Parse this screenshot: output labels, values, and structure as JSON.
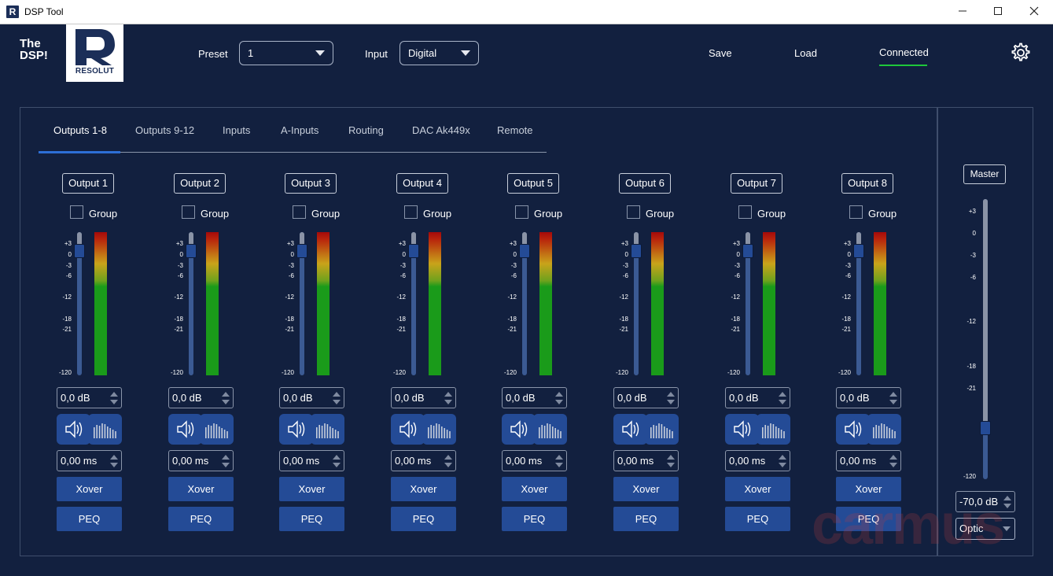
{
  "window": {
    "title": "DSP Tool",
    "icon": "resolut-app-icon",
    "controls": [
      "minimize-icon",
      "maximize-icon",
      "close-icon"
    ]
  },
  "brand": {
    "product_line1": "The",
    "product_line2": "DSP!",
    "logo_text": "RESOLUT"
  },
  "header": {
    "preset_label": "Preset",
    "preset_value": "1",
    "input_label": "Input",
    "input_value": "Digital",
    "save_label": "Save",
    "load_label": "Load",
    "status_label": "Connected",
    "status_color": "#1ec73a",
    "settings_icon": "gear-icon"
  },
  "tabs": [
    {
      "label": "Outputs 1-8",
      "active": true
    },
    {
      "label": "Outputs 9-12",
      "active": false
    },
    {
      "label": "Inputs",
      "active": false
    },
    {
      "label": "A-Inputs",
      "active": false
    },
    {
      "label": "Routing",
      "active": false
    },
    {
      "label": "DAC Ak449x",
      "active": false
    },
    {
      "label": "Remote",
      "active": false
    }
  ],
  "channel_scale": [
    "+3",
    "0",
    "-3",
    "-6",
    "-12",
    "-18",
    "-21",
    "-120"
  ],
  "channels": [
    {
      "name": "Output 1",
      "group_label": "Group",
      "group_checked": false,
      "gain": "0,0 dB",
      "delay": "0,00 ms",
      "xover_label": "Xover",
      "peq_label": "PEQ",
      "fader_level_db": 0
    },
    {
      "name": "Output 2",
      "group_label": "Group",
      "group_checked": false,
      "gain": "0,0 dB",
      "delay": "0,00 ms",
      "xover_label": "Xover",
      "peq_label": "PEQ",
      "fader_level_db": 0
    },
    {
      "name": "Output 3",
      "group_label": "Group",
      "group_checked": false,
      "gain": "0,0 dB",
      "delay": "0,00 ms",
      "xover_label": "Xover",
      "peq_label": "PEQ",
      "fader_level_db": 0
    },
    {
      "name": "Output 4",
      "group_label": "Group",
      "group_checked": false,
      "gain": "0,0 dB",
      "delay": "0,00 ms",
      "xover_label": "Xover",
      "peq_label": "PEQ",
      "fader_level_db": 0
    },
    {
      "name": "Output 5",
      "group_label": "Group",
      "group_checked": false,
      "gain": "0,0 dB",
      "delay": "0,00 ms",
      "xover_label": "Xover",
      "peq_label": "PEQ",
      "fader_level_db": 0
    },
    {
      "name": "Output 6",
      "group_label": "Group",
      "group_checked": false,
      "gain": "0,0 dB",
      "delay": "0,00 ms",
      "xover_label": "Xover",
      "peq_label": "PEQ",
      "fader_level_db": 0
    },
    {
      "name": "Output 7",
      "group_label": "Group",
      "group_checked": false,
      "gain": "0,0 dB",
      "delay": "0,00 ms",
      "xover_label": "Xover",
      "peq_label": "PEQ",
      "fader_level_db": 0
    },
    {
      "name": "Output 8",
      "group_label": "Group",
      "group_checked": false,
      "gain": "0,0 dB",
      "delay": "0,00 ms",
      "xover_label": "Xover",
      "peq_label": "PEQ",
      "fader_level_db": 0
    }
  ],
  "channel_icons": {
    "mute": "speaker-icon",
    "meter_mode": "level-bars-icon"
  },
  "master": {
    "label": "Master",
    "scale": [
      "+3",
      "0",
      "-3",
      "-6",
      "-12",
      "-18",
      "-21",
      "-120"
    ],
    "gain": "-70,0 dB",
    "source": "Optic",
    "fader_level_db": -70
  },
  "watermark": "carmus",
  "colors": {
    "background": "#12203f",
    "button": "#244b96",
    "tab_active": "#2d6fd6"
  }
}
